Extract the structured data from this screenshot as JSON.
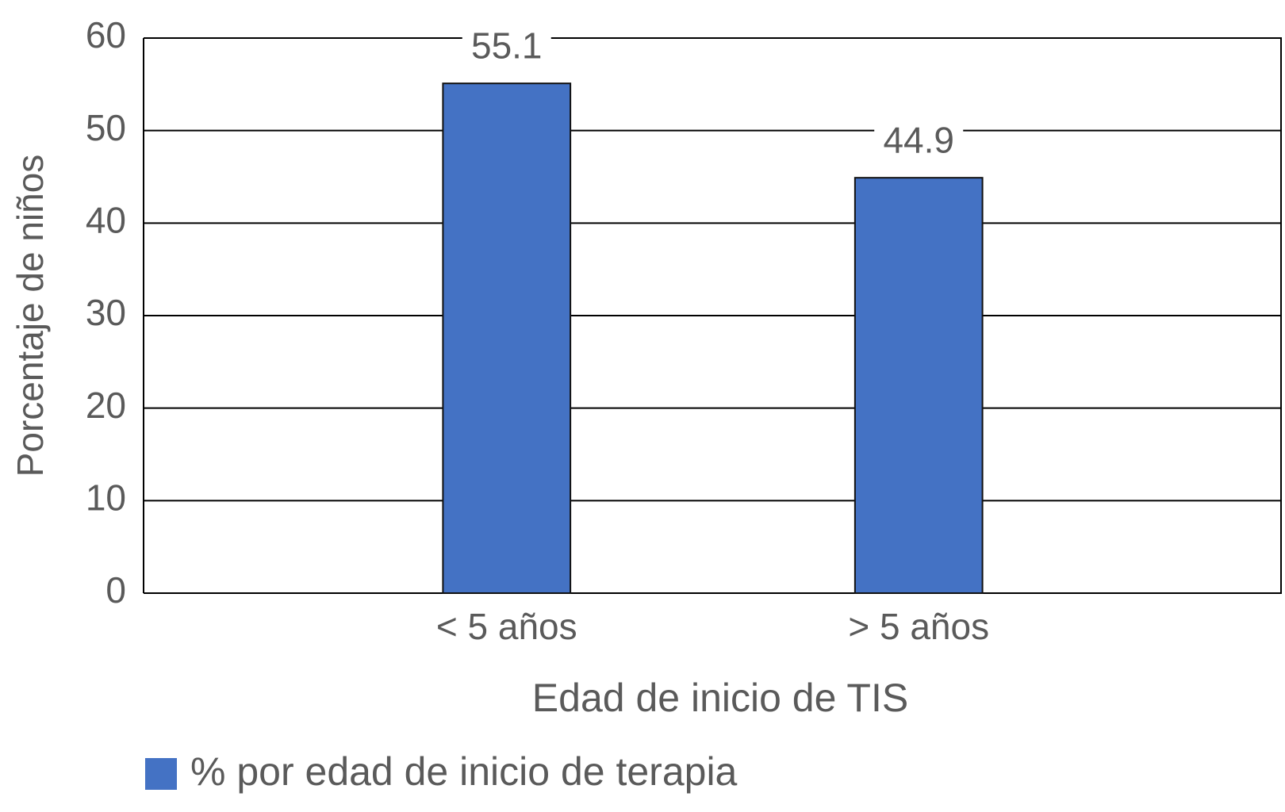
{
  "chart_data": {
    "type": "bar",
    "y_label": "Porcentaje de niños",
    "x_label": "Edad de inicio de TIS",
    "categories": [
      "< 5 años",
      "> 5 años"
    ],
    "series": [
      {
        "name": "% por edad de inicio de terapia",
        "color": "#4472c4",
        "values": [
          55.1,
          44.9
        ]
      }
    ],
    "ylim": [
      0,
      60
    ],
    "yticks": [
      0,
      10,
      20,
      30,
      40,
      50,
      60
    ],
    "grid": true
  }
}
